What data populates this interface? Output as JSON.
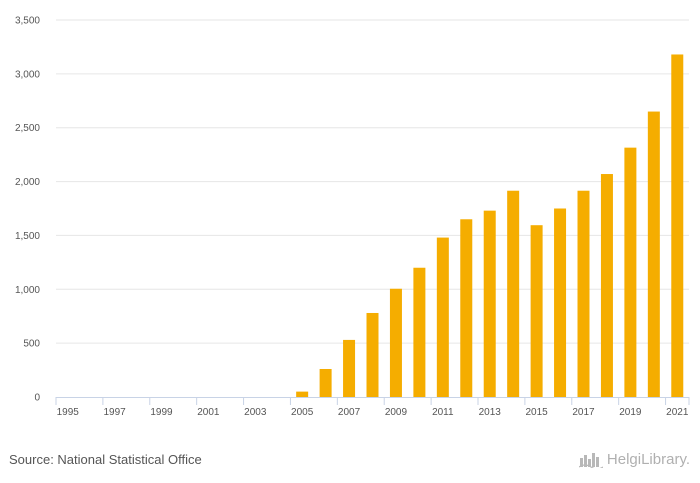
{
  "chart_data": {
    "type": "bar",
    "title": "",
    "xlabel": "",
    "ylabel": "",
    "categories": [
      "1995",
      "1996",
      "1997",
      "1998",
      "1999",
      "2000",
      "2001",
      "2002",
      "2003",
      "2004",
      "2005",
      "2006",
      "2007",
      "2008",
      "2009",
      "2010",
      "2011",
      "2012",
      "2013",
      "2014",
      "2015",
      "2016",
      "2017",
      "2018",
      "2019",
      "2020",
      "2021"
    ],
    "x_tick_labels": [
      "1995",
      "1997",
      "1999",
      "2001",
      "2003",
      "2005",
      "2007",
      "2009",
      "2011",
      "2013",
      "2015",
      "2017",
      "2019",
      "2021"
    ],
    "values": [
      0,
      0,
      0,
      0,
      0,
      0,
      0,
      0,
      0,
      0,
      50,
      260,
      530,
      780,
      1005,
      1200,
      1480,
      1650,
      1730,
      1915,
      1595,
      1750,
      1915,
      2070,
      2315,
      2650,
      3180
    ],
    "ylim": [
      0,
      3500
    ],
    "y_ticks": [
      0,
      500,
      1000,
      1500,
      2000,
      2500,
      3000,
      3500
    ],
    "y_tick_labels": [
      "0",
      "500",
      "1,000",
      "1,500",
      "2,000",
      "2,500",
      "3,000",
      "3,500"
    ],
    "grid": true,
    "bar_color": "#f5ad00"
  },
  "footer": {
    "source": "Source: National Statistical Office",
    "brand": "HelgiLibrary."
  }
}
